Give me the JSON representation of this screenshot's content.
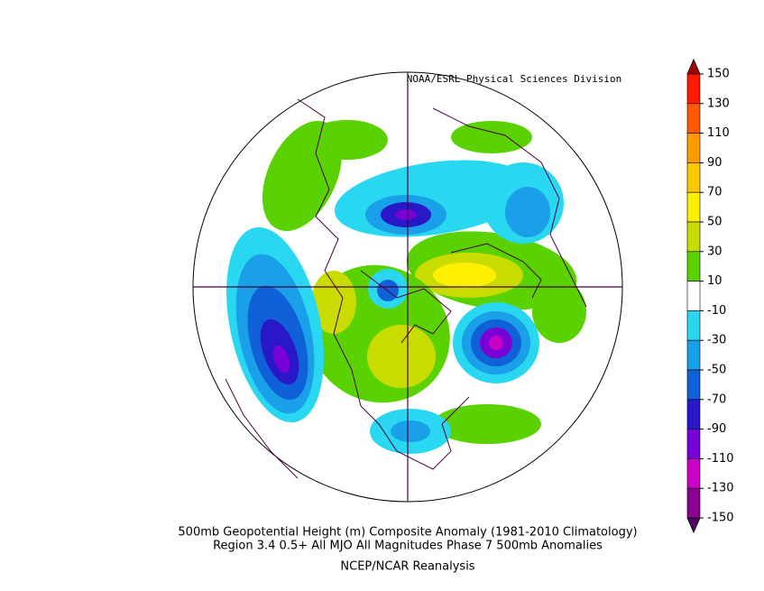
{
  "credit": "NOAA/ESRL Physical Sciences Division",
  "colorbar": {
    "labels": [
      150,
      130,
      110,
      90,
      70,
      50,
      30,
      10,
      -10,
      -30,
      -50,
      -70,
      -90,
      -110,
      -130,
      -150
    ],
    "colors": [
      "#ff1a00",
      "#ff5a00",
      "#ff9a00",
      "#ffc800",
      "#ffef00",
      "#c8dc00",
      "#5ad200",
      "#ffffff",
      "#29d8f0",
      "#1aa0e8",
      "#1060d8",
      "#2818c8",
      "#7a00d8",
      "#c800c8",
      "#8a0090"
    ],
    "over": "#a00000",
    "under": "#500060"
  },
  "caption": [
    "500mb Geopotential Height (m) Composite Anomaly (1981-2010 Climatology)",
    "Region 3.4 0.5+ All MJO All Magnitudes Phase 7 500mb  Anomalies",
    "NCEP/NCAR Reanalysis"
  ]
}
